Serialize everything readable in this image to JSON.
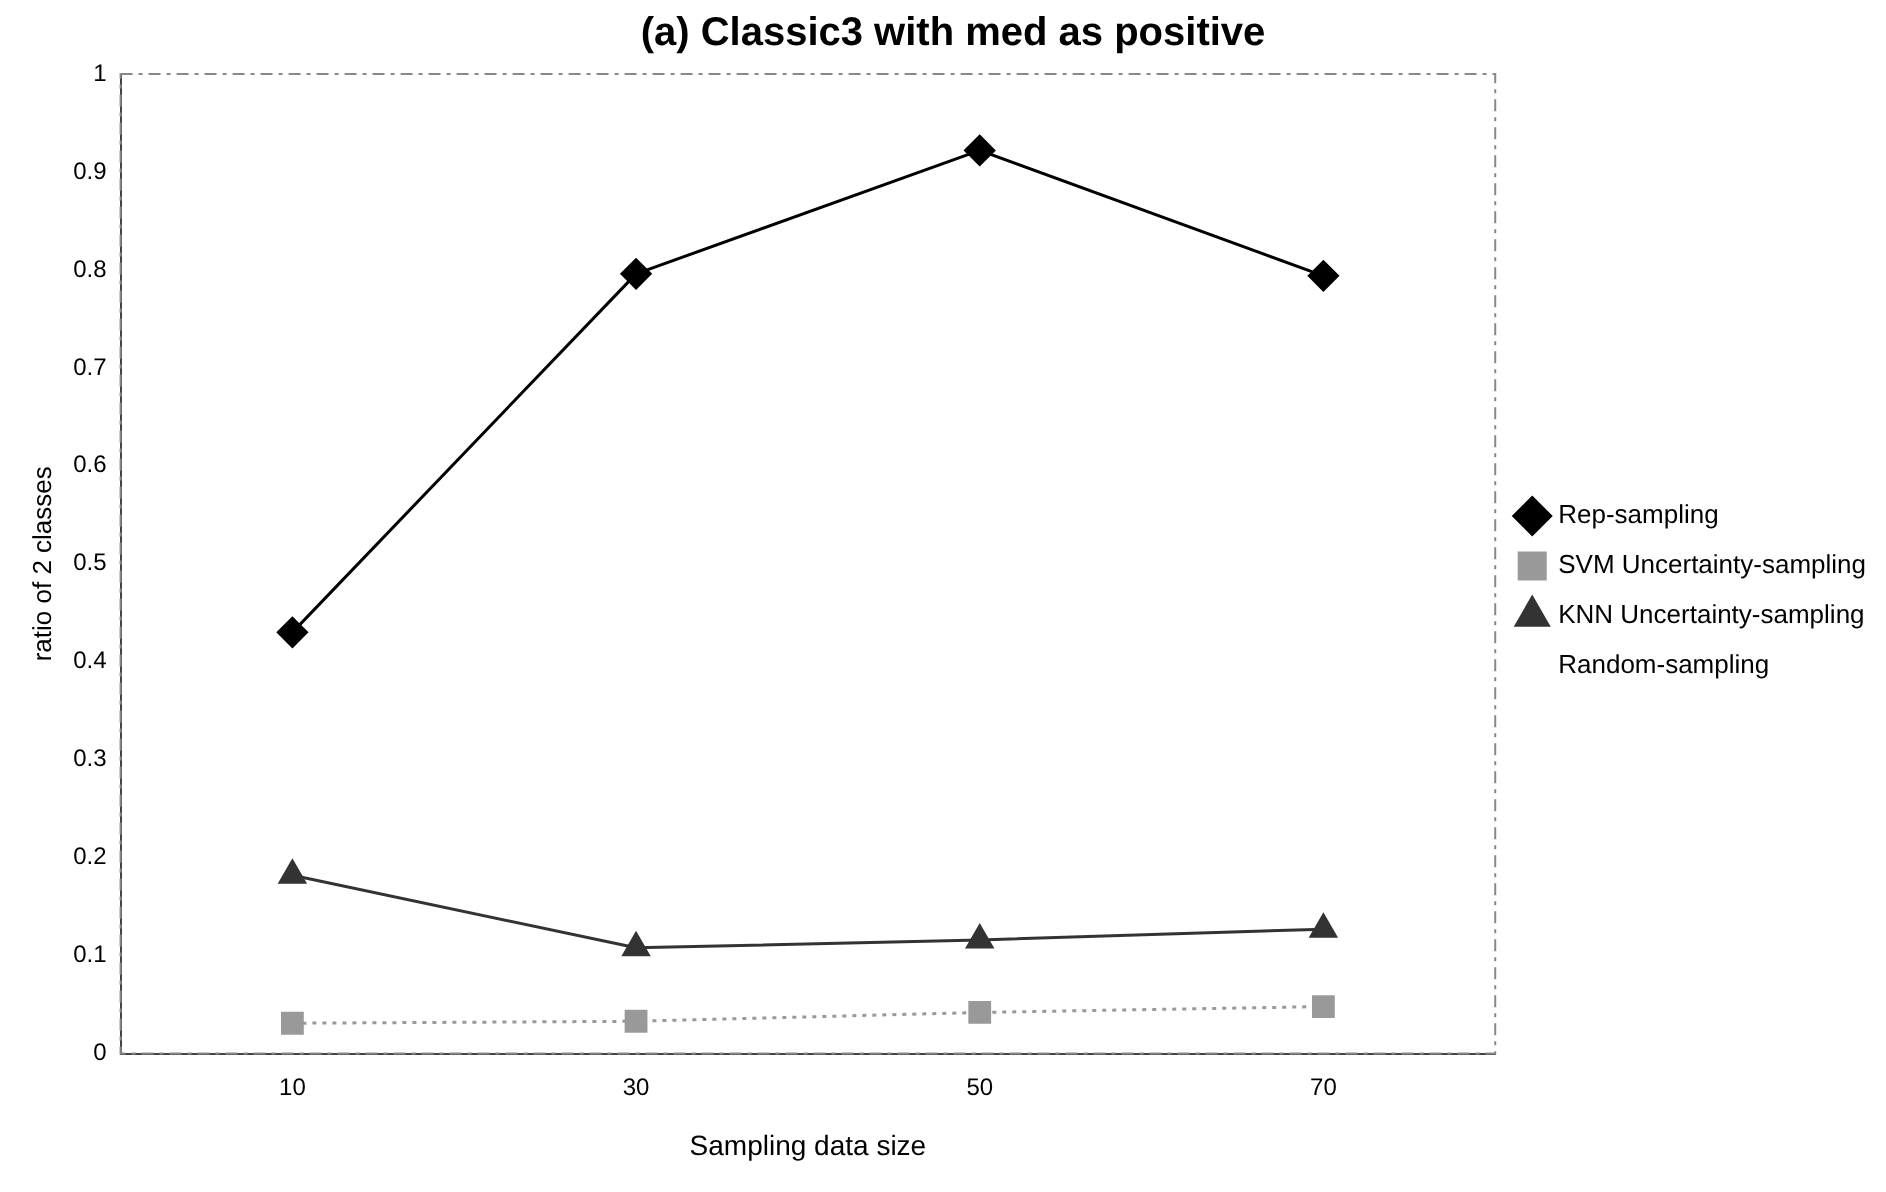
{
  "chart_data": {
    "type": "line",
    "title": "(a) Classic3 with med as positive",
    "xlabel": "Sampling data size",
    "ylabel": "ratio of 2 classes",
    "categories": [
      "10",
      "30",
      "50",
      "70"
    ],
    "ylim": [
      0,
      1
    ],
    "yticks": [
      0,
      0.1,
      0.2,
      0.3,
      0.4,
      0.5,
      0.6,
      0.7,
      0.8,
      0.9,
      1
    ],
    "grid": false,
    "legend": "right",
    "series": [
      {
        "name": "Rep-sampling",
        "color": "#000000",
        "marker": "diamond",
        "line_style": "solid",
        "values": [
          0.43,
          0.796,
          0.922,
          0.794
        ]
      },
      {
        "name": "SVM Uncertainty-sampling",
        "color": "#999999",
        "marker": "square",
        "line_style": "dotted",
        "values": [
          0.031,
          0.033,
          0.042,
          0.048
        ]
      },
      {
        "name": "KNN Uncertainty-sampling",
        "color": "#333333",
        "marker": "triangle",
        "line_style": "solid",
        "values": [
          0.182,
          0.108,
          0.116,
          0.127
        ]
      },
      {
        "name": "Random-sampling",
        "marker": "none",
        "values": [
          null,
          null,
          null,
          null
        ]
      }
    ]
  }
}
